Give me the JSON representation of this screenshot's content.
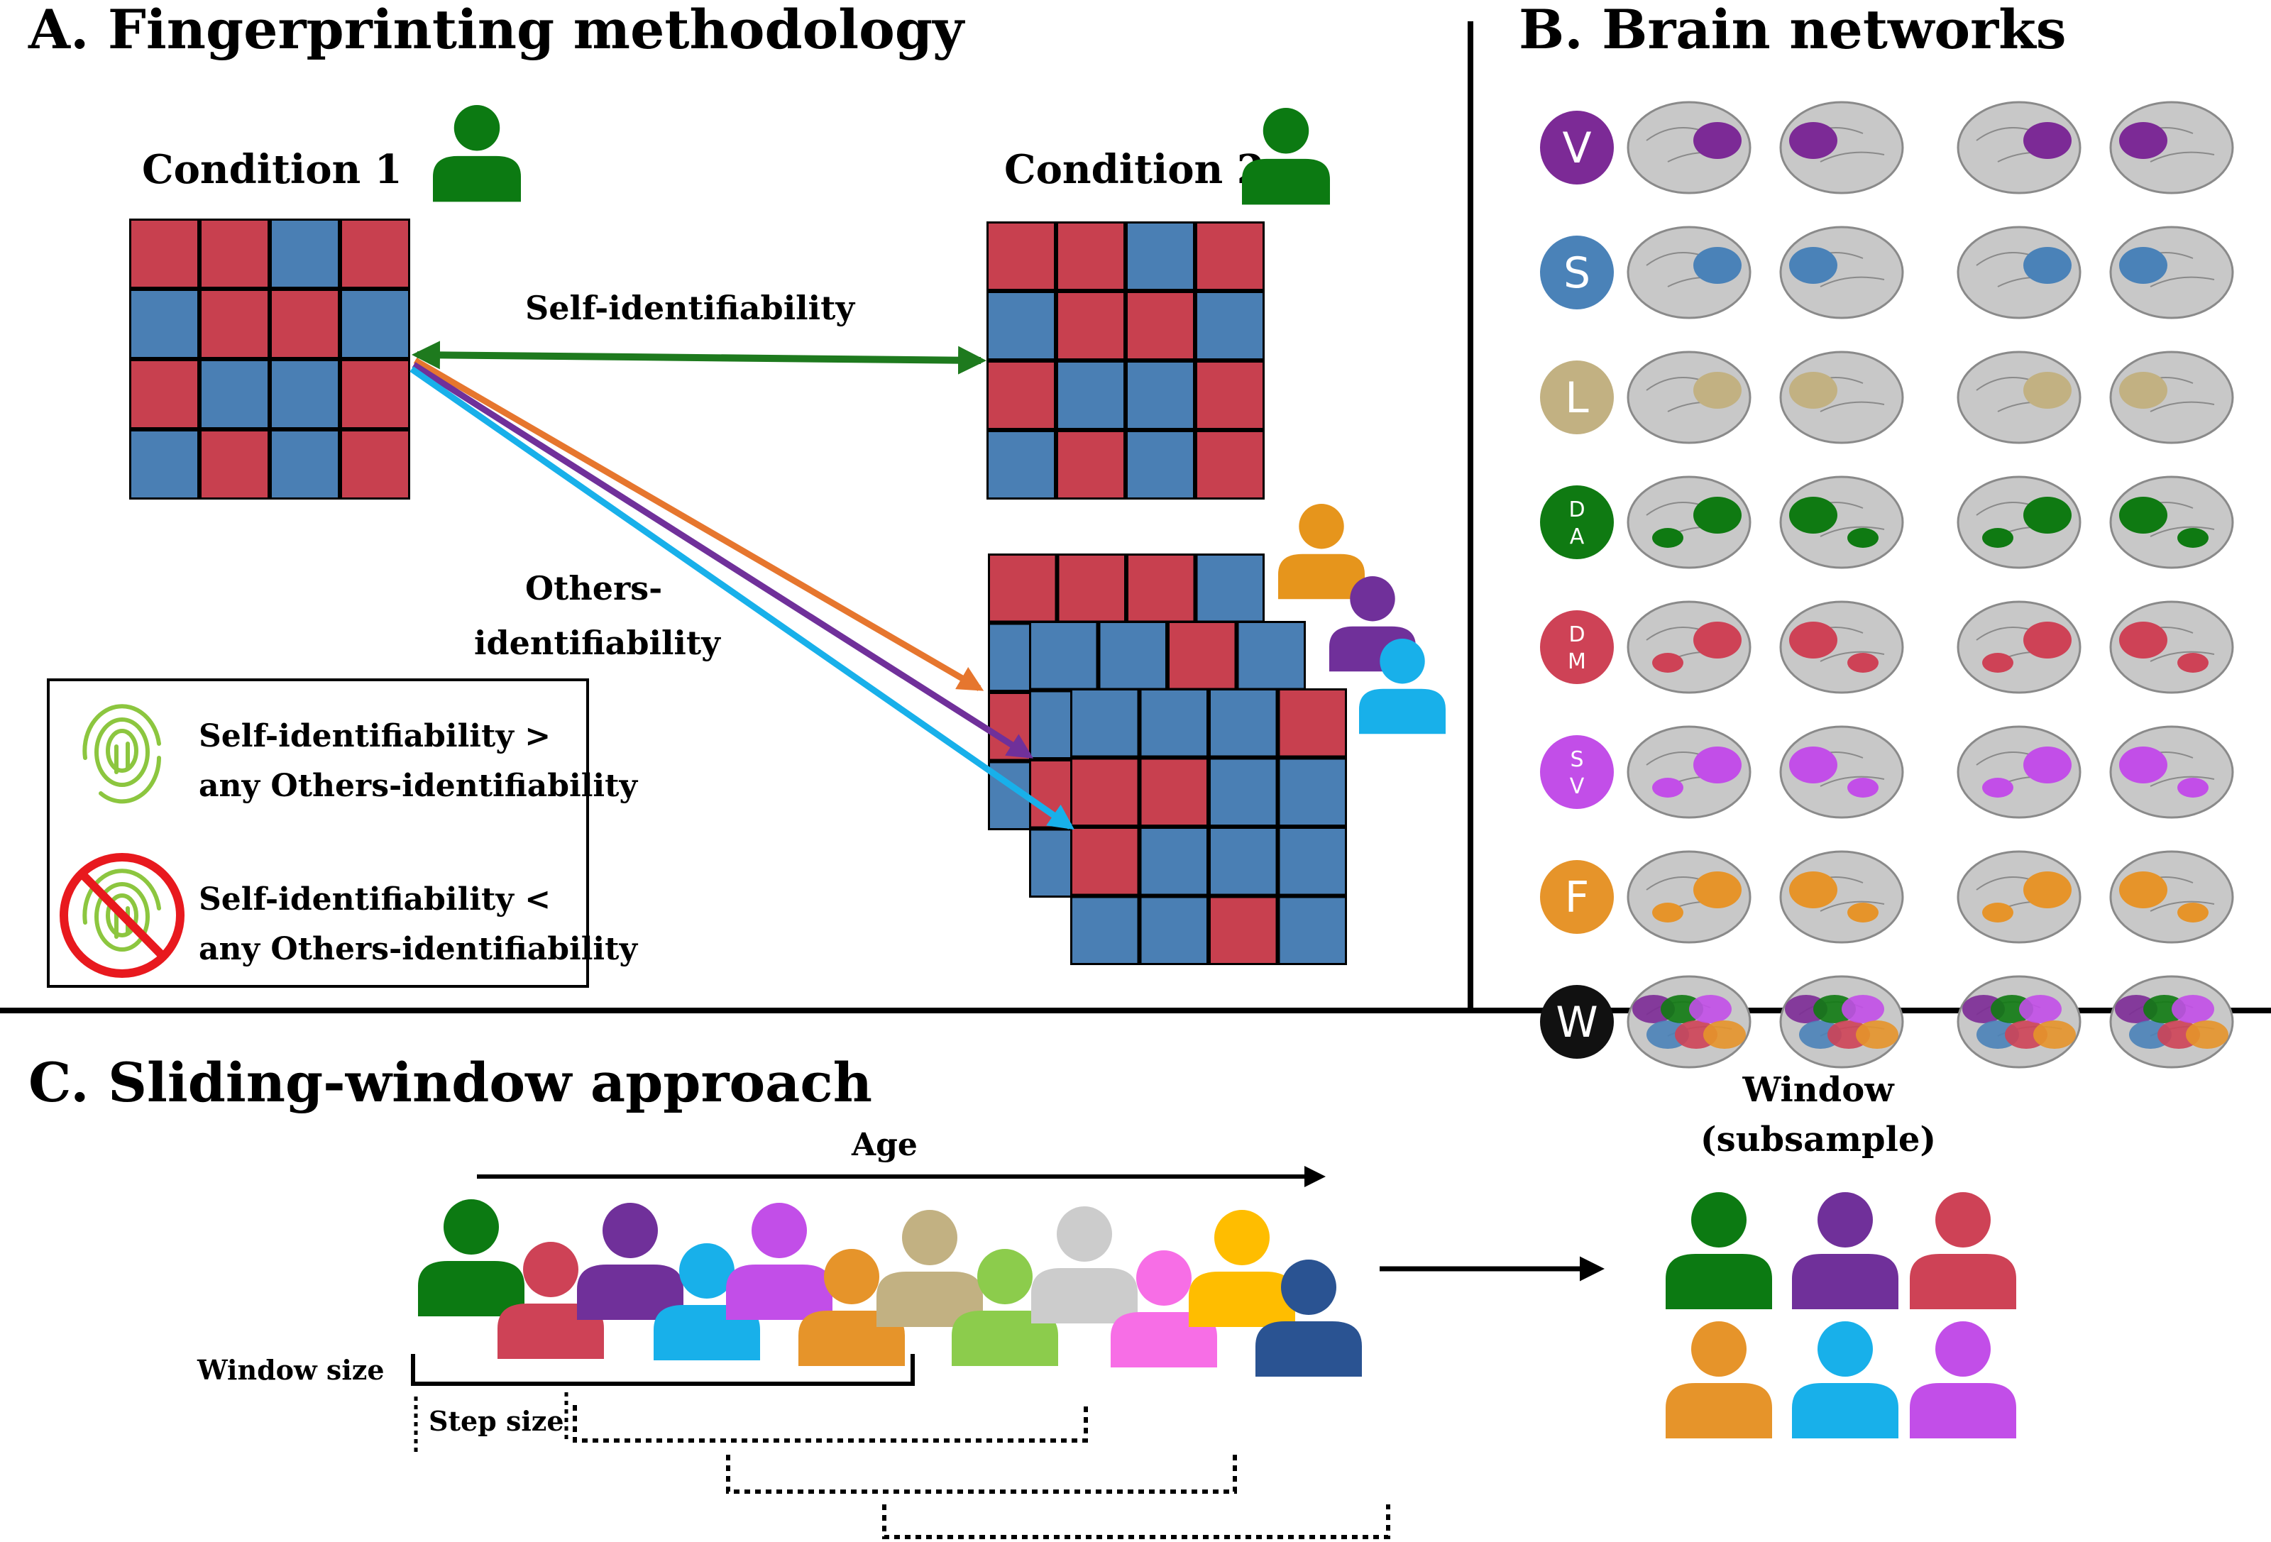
{
  "panel_a": {
    "title": "A. Fingerprinting methodology",
    "condition1": "Condition 1",
    "condition2": "Condition 2",
    "self_label": "Self-identifiability",
    "others_label_1": "Others-",
    "others_label_2": "identifiability",
    "legend": {
      "pos_line1": "Self-identifiability >",
      "pos_line2": "any Others-identifiability",
      "neg_line1": "Self-identifiability <",
      "neg_line2": "any Others-identifiability"
    },
    "colors": {
      "red": "#c8404f",
      "blue": "#4a7fb4",
      "self_arrow": "#1e7a1e",
      "subject": "#0c7a12"
    },
    "others_arrow_colors": [
      "#e6762e",
      "#70309a",
      "#18b0ea"
    ],
    "others_subject_colors": [
      "#e6951c",
      "#70309a",
      "#18b0ea"
    ]
  },
  "panel_b": {
    "title": "B.  Brain networks",
    "networks": [
      {
        "label_lines": [
          "V"
        ],
        "color": "#7c2a96"
      },
      {
        "label_lines": [
          "S"
        ],
        "color": "#4a82b8"
      },
      {
        "label_lines": [
          "L"
        ],
        "color": "#c2b182"
      },
      {
        "label_lines": [
          "D",
          "A"
        ],
        "color": "#0f7a12"
      },
      {
        "label_lines": [
          "D",
          "M"
        ],
        "color": "#ce4256"
      },
      {
        "label_lines": [
          "S",
          "V"
        ],
        "color": "#c24ee8"
      },
      {
        "label_lines": [
          "F"
        ],
        "color": "#e6942a"
      },
      {
        "label_lines": [
          "W"
        ],
        "color": "#111111"
      }
    ]
  },
  "panel_c": {
    "title": "C. Sliding-window approach",
    "age_label": "Age",
    "window_size_label": "Window size",
    "step_size_label": "Step size",
    "window_title_1": "Window",
    "window_title_2": "(subsample)",
    "crowd_colors": [
      "#0c7a12",
      "#ce4256",
      "#70309a",
      "#18b0ea",
      "#c24ee8",
      "#e6942a",
      "#c2b182",
      "#8ccc4c",
      "#cccccc",
      "#f76ee6",
      "#ffbd00",
      "#2a5392"
    ],
    "window_subject_colors": [
      "#0c7a12",
      "#70309a",
      "#ce4256",
      "#e6942a",
      "#18b0ea",
      "#c24ee8"
    ]
  }
}
